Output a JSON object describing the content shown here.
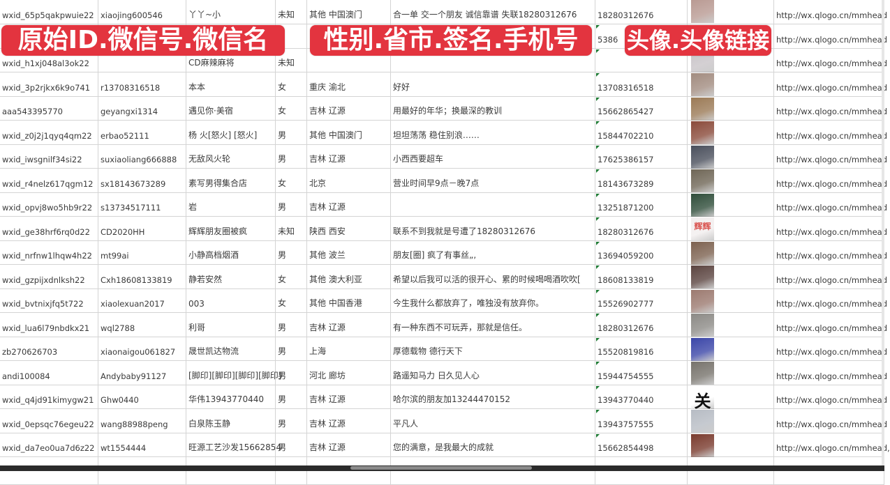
{
  "banners": [
    {
      "text": "原始ID.微信号.微信名",
      "color": "#e3343f"
    },
    {
      "text": "性别.省市.签名.手机号",
      "color": "#e3343f"
    },
    {
      "text": "头像.头像链接",
      "color": "#e3343f"
    }
  ],
  "rows": [
    {
      "id": "wxid_65p5qakpwuie22",
      "wechat": "xiaojing600546",
      "name": "丫丫~小",
      "gender": "未知",
      "region": "其他 中国澳门",
      "signature": "合一单 交一个朋友 诚信靠谱 失联18280312676",
      "phone": "18280312676",
      "avatar": "#b99a93",
      "link": "http://wx.qlogo.cn/mmhead"
    },
    {
      "id": "",
      "wechat": "",
      "name": "",
      "gender": "",
      "region": "",
      "signature": "",
      "phone": "5386",
      "avatar": "#5d6f9a",
      "link": "http://wx.qlogo.cn/mmhead"
    },
    {
      "id": "wxid_h1xj048al3ok22",
      "wechat": "",
      "name": "CD麻辣麻将",
      "gender": "未知",
      "region": "",
      "signature": "",
      "phone": "",
      "avatar": "#c9c4c8",
      "link": "http://wx.qlogo.cn/mmhead"
    },
    {
      "id": "wxid_3p2rjkx6k9o741",
      "wechat": "r13708316518",
      "name": "本本",
      "gender": "女",
      "region": "重庆 渝北",
      "signature": "好好",
      "phone": "13708316518",
      "avatar": "#a28c80",
      "link": "http://wx.qlogo.cn/mmhead"
    },
    {
      "id": "aaa543395770",
      "wechat": "geyangxi1314",
      "name": "遇见你·美宿",
      "gender": "女",
      "region": "吉林 辽源",
      "signature": "用最好的年华；换最深的教训",
      "phone": "15662865427",
      "avatar": "#9b7a56",
      "link": "http://wx.qlogo.cn/mmhead"
    },
    {
      "id": "wxid_z0j2j1qyq4qm22",
      "wechat": "erbao52111",
      "name": "杨 火[怒火] [怒火]",
      "gender": "男",
      "region": "其他 中国澳门",
      "signature": "坦坦荡荡 稳住别浪……",
      "phone": "15844702210",
      "avatar": "#8a4a3a",
      "link": "http://wx.qlogo.cn/mmhead"
    },
    {
      "id": "wxid_iwsgnilf34si22",
      "wechat": "suxiaoliang666888",
      "name": "无敌风火轮",
      "gender": "男",
      "region": "吉林 辽源",
      "signature": "小西西要超车",
      "phone": "17625386157",
      "avatar": "#4a4f5c",
      "link": "http://wx.qlogo.cn/mmhead"
    },
    {
      "id": "wxid_r4nelz617qgm12",
      "wechat": "sx18143673289",
      "name": "素写男得集合店",
      "gender": "女",
      "region": "北京",
      "signature": "营业时间早9点－晚7点",
      "phone": "18143673289",
      "avatar": "#6f6656",
      "link": "http://wx.qlogo.cn/mmhead"
    },
    {
      "id": "wxid_opvj8wo5hb9r22",
      "wechat": "s13734517111",
      "name": "岩",
      "gender": "男",
      "region": "吉林 辽源",
      "signature": "",
      "phone": "13251871200",
      "avatar": "#2f4d3a",
      "link": "http://wx.qlogo.cn/mmhead"
    },
    {
      "id": "wxid_ge38hrf6rq0d22",
      "wechat": "CD2020HH",
      "name": "辉辉朋友圈被疯",
      "gender": "未知",
      "region": "陕西 西安",
      "signature": "联系不到我就是号遭了18280312676",
      "phone": "18280312676",
      "avatar": "#f2eeee",
      "avatar_text": "辉辉",
      "link": "http://wx.qlogo.cn/mmhead"
    },
    {
      "id": "wxid_nrfnw1lhqw4h22",
      "wechat": "mt99ai",
      "name": "小静高档烟酒",
      "gender": "男",
      "region": "其他 波兰",
      "signature": "朋友[圈] 疯了有事丝„,",
      "phone": "13694059200",
      "avatar": "#7d6250",
      "link": "http://wx.qlogo.cn/mmhead"
    },
    {
      "id": "wxid_gzpijxdnlksh22",
      "wechat": "Cxh18608133819",
      "name": "静若安然",
      "gender": "女",
      "region": "其他 澳大利亚",
      "signature": "希望以后我可以活的很开心、累的时候喝喝酒吹吹[",
      "phone": "18608133819",
      "avatar": "#5b4440",
      "link": "http://wx.qlogo.cn/mmhead"
    },
    {
      "id": "wxid_bvtnixjfq5t722",
      "wechat": "xiaolexuan2017",
      "name": "003",
      "gender": "女",
      "region": "其他 中国香港",
      "signature": "今生我什么都放弃了，唯独没有放弃你。",
      "phone": "15526902777",
      "avatar": "#9c7a70",
      "link": "http://wx.qlogo.cn/mmhead"
    },
    {
      "id": "wxid_lua6l79nbdkx21",
      "wechat": "wql2788",
      "name": "利哥",
      "gender": "男",
      "region": "吉林 辽源",
      "signature": "有一种东西不可玩弄，那就是信任。",
      "phone": "18280312676",
      "avatar": "#8c8a86",
      "link": "http://wx.qlogo.cn/mmhead"
    },
    {
      "id": "zb270626703",
      "wechat": "xiaonaigou061827",
      "name": "晟世凯达物流",
      "gender": "男",
      "region": "上海",
      "signature": "厚德载物 德行天下",
      "phone": "15520819816",
      "avatar": "#3b46a8",
      "link": "http://wx.qlogo.cn/mmhead"
    },
    {
      "id": "andi100084",
      "wechat": "Andybaby91127",
      "name": "[脚印][脚印][脚印][脚印]",
      "gender": "男",
      "region": "河北 廊坊",
      "signature": "路遥知马力 日久见人心",
      "phone": "15944754555",
      "avatar": "#77736c",
      "link": "http://wx.qlogo.cn/mmhead"
    },
    {
      "id": "wxid_q4jd91kimygw21",
      "wechat": "Ghw0440",
      "name": "华伟13943770440",
      "gender": "男",
      "region": "吉林 辽源",
      "signature": "哈尔滨的朋友加13244470152",
      "phone": "13943770440",
      "avatar": "#ffffff",
      "avatar_text": "关",
      "link": "http://wx.qlogo.cn/mmhead"
    },
    {
      "id": "wxid_0epsqc76egeu22",
      "wechat": "wang88988peng",
      "name": "白泉陈玉静",
      "gender": "男",
      "region": "吉林 辽源",
      "signature": "平凡人",
      "phone": "13943757555",
      "avatar": "#b7bcc4",
      "link": "http://wx.qlogo.cn/mmhead"
    },
    {
      "id": "wxid_da7eo0ua7d6z22",
      "wechat": "wt1554444",
      "name": "旺源工艺沙发15662854",
      "gender": "男",
      "region": "吉林 辽源",
      "signature": "您的满意，是我最大的成就",
      "phone": "15662854498",
      "avatar": "#7a3b2e",
      "link": "http://wx.qlogo.cn/mmhead,"
    }
  ]
}
